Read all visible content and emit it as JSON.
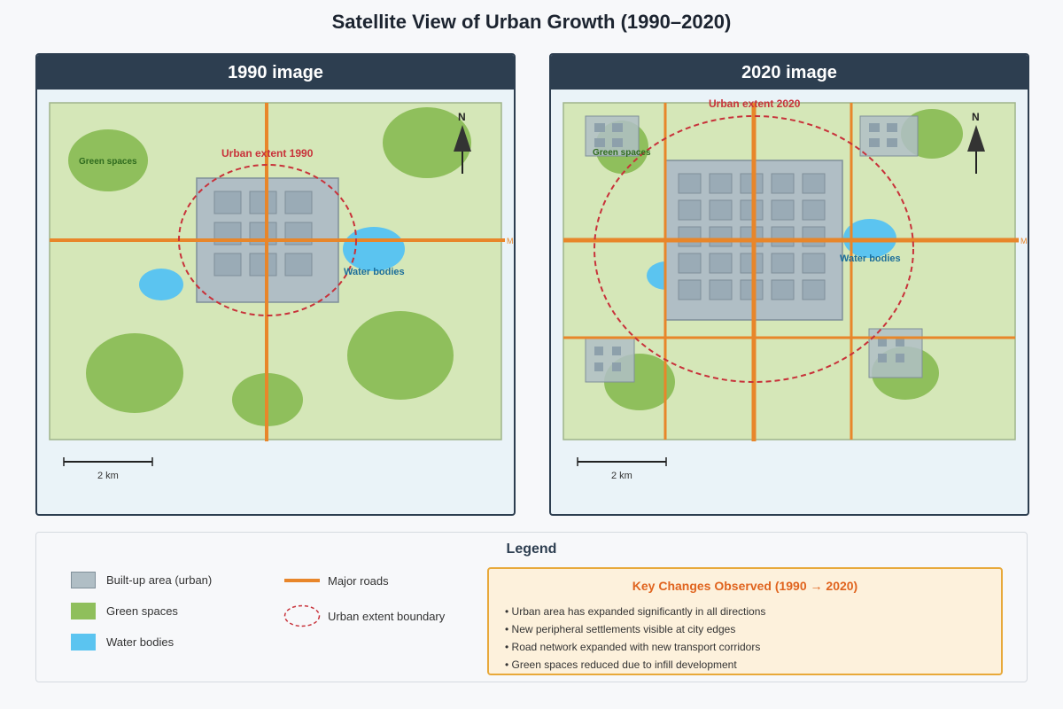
{
  "title": "Satellite View of Urban Growth (1990–2020)",
  "panels": [
    {
      "header": "1990 image",
      "urban_extent_label": "Urban extent 1990",
      "green_label": "Green spaces",
      "water_label": "Water bodies",
      "roads_label": "Major roads",
      "north": "N",
      "scale": "2 km"
    },
    {
      "header": "2020 image",
      "urban_extent_label": "Urban extent 2020",
      "green_label": "Green spaces",
      "water_label": "Water bodies",
      "roads_label": "Major roads",
      "north": "N",
      "scale": "2 km"
    }
  ],
  "legend": {
    "title": "Legend",
    "items": [
      {
        "label": "Built-up area (urban)",
        "color": "#b0bec5"
      },
      {
        "label": "Green spaces",
        "color": "#8fbf5c"
      },
      {
        "label": "Water bodies",
        "color": "#5bc4f0"
      },
      {
        "label": "Major roads",
        "color": "#e8862a"
      },
      {
        "label": "Urban extent boundary",
        "color": "#c8323a"
      }
    ]
  },
  "changes": {
    "title": "Key Changes Observed (1990 → 2020)",
    "items": [
      "• Urban area has expanded significantly in all directions",
      "• New peripheral settlements visible at city edges",
      "• Road network expanded with new transport corridors",
      "• Green spaces reduced due to infill development"
    ]
  },
  "colors": {
    "land": "#d5e7b8",
    "green": "#8fbf5c",
    "water": "#5bc4f0",
    "urban": "#b0bec5",
    "road": "#e8862a",
    "boundary": "#c8323a",
    "header": "#2d3e50"
  }
}
